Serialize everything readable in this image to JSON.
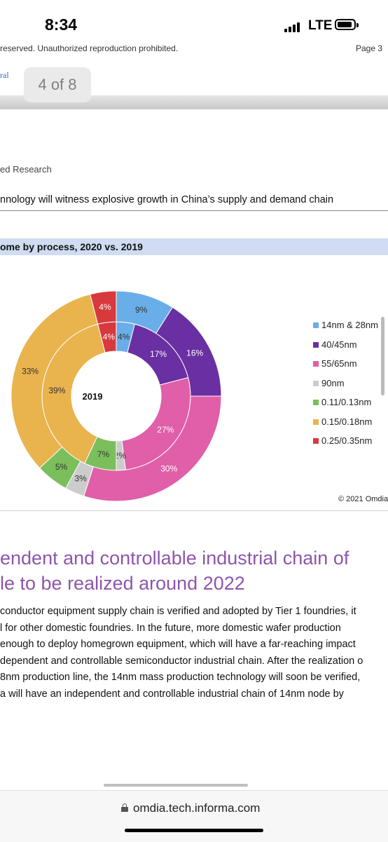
{
  "status_bar": {
    "time": "8:34",
    "network": "LTE"
  },
  "document": {
    "header_text": "reserved. Unauthorized reproduction prohibited.",
    "page_label": "Page 3",
    "link_fragment": "ral",
    "page_indicator": "4 of 8",
    "source_line": "ed Research",
    "headline": "nnology will witness explosive growth in China’s supply and demand chain",
    "figure_title": "ome by process, 2020 vs. 2019",
    "copyright": "© 2021 Omdia",
    "section_heading": [
      "endent and controllable industrial chain of",
      "le to be realized around 2022"
    ],
    "body_lines": [
      "conductor equipment supply chain is verified and adopted by Tier 1 foundries, it",
      "l for other domestic foundries. In the future, more domestic wafer production",
      " enough to deploy homegrown equipment, which will have a far-reaching impact",
      "dependent and controllable semiconductor industrial chain. After the realization o",
      "8nm production line, the 14nm mass production technology will soon be verified,",
      "a will have an independent and controllable industrial chain of 14nm node by"
    ]
  },
  "browser": {
    "url": "omdia.tech.informa.com"
  },
  "chart_data": {
    "type": "pie",
    "subtype": "donut",
    "center_label": "2019",
    "categories": [
      "14nm & 28nm",
      "40/45nm",
      "55/65nm",
      "90nm",
      "0.11/0.13nm",
      "0.15/0.18nm",
      "0.25/0.35nm"
    ],
    "colors": [
      "#6aaee9",
      "#6a2fa2",
      "#e05fa8",
      "#cccccc",
      "#7bbf5c",
      "#e9b34e",
      "#d8393d"
    ],
    "series": [
      {
        "name": "2019",
        "ring": "inner",
        "values": [
          4,
          17,
          27,
          2,
          7,
          39,
          4
        ]
      },
      {
        "ring": "outer",
        "values": [
          9,
          16,
          30,
          3,
          5,
          33,
          4
        ]
      }
    ],
    "legend": [
      "14nm & 28nm",
      "40/45nm",
      "55/65nm",
      "90nm",
      "0.11/0.13nm",
      "0.15/0.18nm",
      "0.25/0.35nm"
    ],
    "legend_position": "right"
  }
}
